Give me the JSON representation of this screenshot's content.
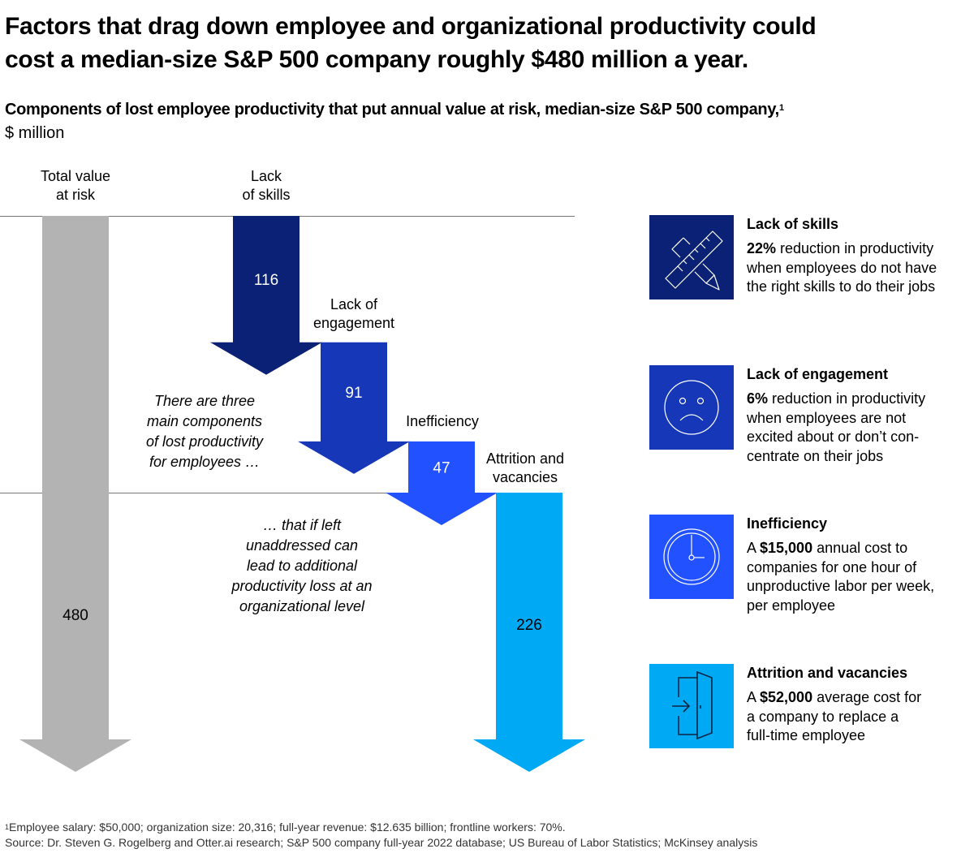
{
  "title_line1": "Factors that drag down employee and organizational productivity could",
  "title_line2": "cost a median-size S&P 500 company roughly $480 million a year.",
  "subtitle": "Components of lost employee productivity that put annual value at risk, median-size S&P 500 company,",
  "subtitle_footnote_marker": "1",
  "unit": "$ million",
  "chart_data": {
    "type": "waterfall",
    "unit": "$ million",
    "categories": [
      "Total value at risk",
      "Lack of skills",
      "Lack of engagement",
      "Inefficiency",
      "Attrition and vacancies"
    ],
    "category_label_lines": [
      [
        "Total value",
        "at risk"
      ],
      [
        "Lack",
        "of skills"
      ],
      [
        "Lack of",
        "engagement"
      ],
      [
        "Inefficiency"
      ],
      [
        "Attrition and",
        "vacancies"
      ]
    ],
    "values": [
      480,
      116,
      91,
      47,
      226
    ],
    "value_labels": [
      "480",
      "116",
      "91",
      "47",
      "226"
    ],
    "total_index": 0,
    "colors": [
      "#b3b3b3",
      "#0a2175",
      "#1638b8",
      "#2251ff",
      "#00a9f4"
    ],
    "value_label_colors": [
      "#000000",
      "#ffffff",
      "#ffffff",
      "#ffffff",
      "#000000"
    ],
    "annotations": [
      {
        "text_lines": [
          "There are three",
          "main components",
          "of lost productivity",
          "for employees …"
        ],
        "style": "italic"
      },
      {
        "text_lines": [
          "… that if left",
          "unaddressed can",
          "lead to additional",
          "productivity loss at an",
          "organizational level"
        ],
        "style": "italic"
      }
    ],
    "grid_lines": [
      "top of total",
      "end of employee components"
    ]
  },
  "panels": [
    {
      "title": "Lack of skills",
      "icon": "ruler-pencil-icon",
      "color": "#0a2175",
      "bold": "22%",
      "text": " reduction in productivity when employees do not have the right skills to do their jobs",
      "lines": [
        [
          "22%",
          " reduction in productivity"
        ],
        [
          "",
          "when employees do not have"
        ],
        [
          "",
          "the right skills to do their jobs"
        ]
      ]
    },
    {
      "title": "Lack of engagement",
      "icon": "sad-face-icon",
      "color": "#1638b8",
      "bold": "6%",
      "text": " reduction in productivity when employees are not excited about or don’t con-centrate on their jobs",
      "lines": [
        [
          "6%",
          " reduction in productivity"
        ],
        [
          "",
          "when employees are not"
        ],
        [
          "",
          "excited about or don’t con-"
        ],
        [
          "",
          "centrate on their jobs"
        ]
      ]
    },
    {
      "title": "Inefficiency",
      "icon": "clock-icon",
      "color": "#2251ff",
      "bold": "$15,000",
      "text": " annual cost to companies for one hour of unproductive labor per week, per employee",
      "lines": [
        [
          "A ",
          "$15,000",
          " annual cost to"
        ],
        [
          "",
          "companies for one hour of"
        ],
        [
          "",
          "unproductive labor per week,"
        ],
        [
          "",
          "per employee"
        ]
      ]
    },
    {
      "title": "Attrition and vacancies",
      "icon": "exit-door-icon",
      "color": "#00a9f4",
      "bold": "$52,000",
      "text": " average cost for a company to replace a full-time employee",
      "lines": [
        [
          "A ",
          "$52,000",
          " average cost for"
        ],
        [
          "",
          "a company to replace a"
        ],
        [
          "",
          "full-time employee"
        ]
      ]
    }
  ],
  "footnote_marker": "1",
  "footnote": "Employee salary: $50,000; organization size: 20,316; full-year revenue: $12.635 billion; frontline workers: 70%.",
  "source": "Source: Dr. Steven G. Rogelberg and Otter.ai research; S&P 500 company full-year 2022 database; US Bureau of Labor Statistics; McKinsey analysis"
}
